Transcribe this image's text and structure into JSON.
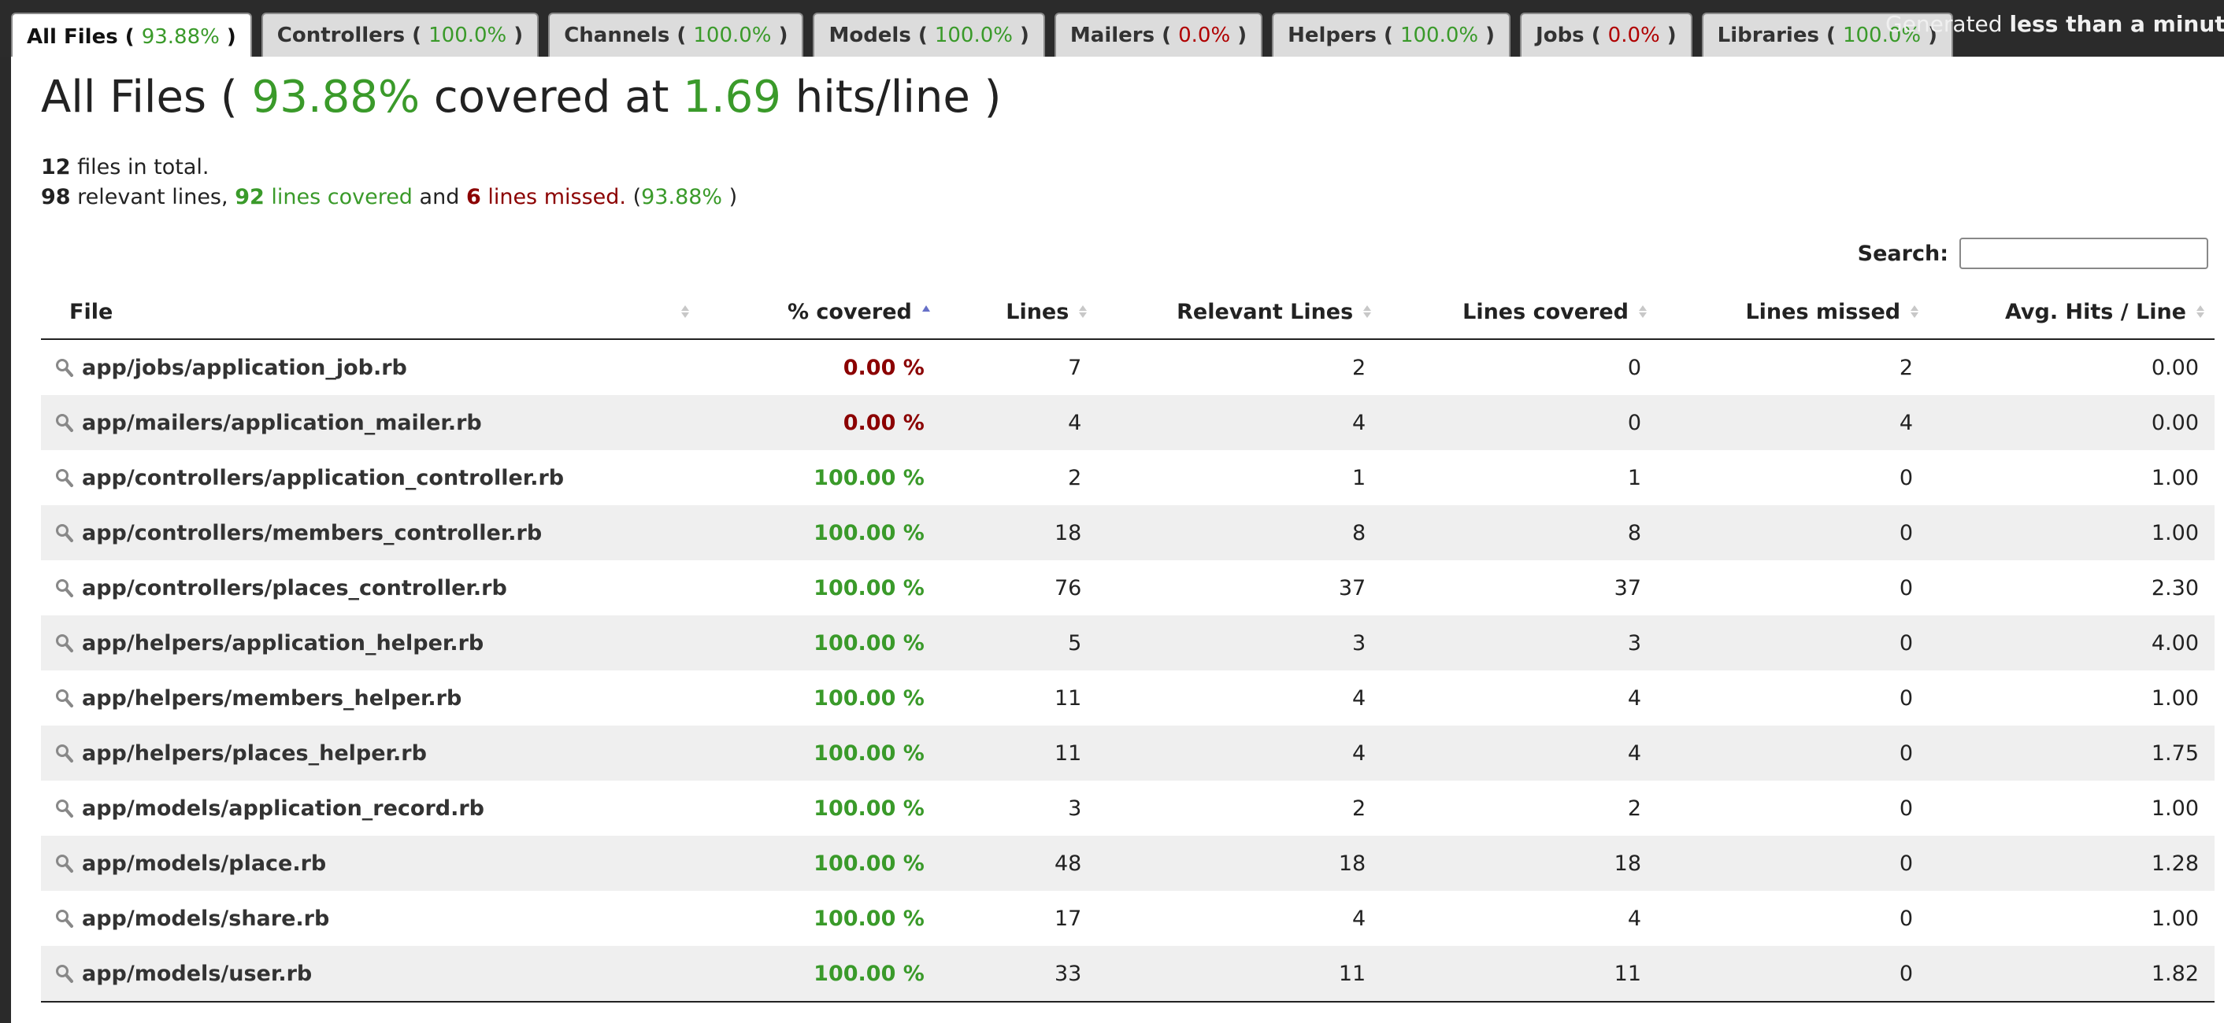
{
  "tabs": [
    {
      "label": "All Files",
      "pct": "93.88%",
      "status": "green",
      "active": true
    },
    {
      "label": "Controllers",
      "pct": "100.0%",
      "status": "green",
      "active": false
    },
    {
      "label": "Channels",
      "pct": "100.0%",
      "status": "green",
      "active": false
    },
    {
      "label": "Models",
      "pct": "100.0%",
      "status": "green",
      "active": false
    },
    {
      "label": "Mailers",
      "pct": "0.0%",
      "status": "red",
      "active": false
    },
    {
      "label": "Helpers",
      "pct": "100.0%",
      "status": "green",
      "active": false
    },
    {
      "label": "Jobs",
      "pct": "0.0%",
      "status": "red",
      "active": false
    },
    {
      "label": "Libraries",
      "pct": "100.0%",
      "status": "green",
      "active": false
    }
  ],
  "generated": {
    "prefix": "Generated",
    "value": "less than a minute ag"
  },
  "heading": {
    "prefix": "All Files (",
    "pct": "93.88%",
    "middle": "covered at",
    "hits": "1.69",
    "suffix": "hits/line )"
  },
  "summary": {
    "files_total": "12",
    "files_text": "files in total.",
    "relevant": "98",
    "relevant_text": "relevant lines,",
    "covered": "92",
    "covered_text": "lines covered",
    "and_text": "and",
    "missed": "6",
    "missed_text": "lines missed.",
    "pct_open": "(",
    "pct": "93.88%",
    "pct_close": ")"
  },
  "search": {
    "label": "Search:",
    "value": "",
    "placeholder": ""
  },
  "table": {
    "headers": [
      "File",
      "% covered",
      "Lines",
      "Relevant Lines",
      "Lines covered",
      "Lines missed",
      "Avg. Hits / Line"
    ],
    "rows": [
      {
        "file": "app/jobs/application_job.rb",
        "pct": "0.00 %",
        "status": "red",
        "lines": "7",
        "relevant": "2",
        "covered": "0",
        "missed": "2",
        "avg": "0.00"
      },
      {
        "file": "app/mailers/application_mailer.rb",
        "pct": "0.00 %",
        "status": "red",
        "lines": "4",
        "relevant": "4",
        "covered": "0",
        "missed": "4",
        "avg": "0.00"
      },
      {
        "file": "app/controllers/application_controller.rb",
        "pct": "100.00 %",
        "status": "green",
        "lines": "2",
        "relevant": "1",
        "covered": "1",
        "missed": "0",
        "avg": "1.00"
      },
      {
        "file": "app/controllers/members_controller.rb",
        "pct": "100.00 %",
        "status": "green",
        "lines": "18",
        "relevant": "8",
        "covered": "8",
        "missed": "0",
        "avg": "1.00"
      },
      {
        "file": "app/controllers/places_controller.rb",
        "pct": "100.00 %",
        "status": "green",
        "lines": "76",
        "relevant": "37",
        "covered": "37",
        "missed": "0",
        "avg": "2.30"
      },
      {
        "file": "app/helpers/application_helper.rb",
        "pct": "100.00 %",
        "status": "green",
        "lines": "5",
        "relevant": "3",
        "covered": "3",
        "missed": "0",
        "avg": "4.00"
      },
      {
        "file": "app/helpers/members_helper.rb",
        "pct": "100.00 %",
        "status": "green",
        "lines": "11",
        "relevant": "4",
        "covered": "4",
        "missed": "0",
        "avg": "1.00"
      },
      {
        "file": "app/helpers/places_helper.rb",
        "pct": "100.00 %",
        "status": "green",
        "lines": "11",
        "relevant": "4",
        "covered": "4",
        "missed": "0",
        "avg": "1.75"
      },
      {
        "file": "app/models/application_record.rb",
        "pct": "100.00 %",
        "status": "green",
        "lines": "3",
        "relevant": "2",
        "covered": "2",
        "missed": "0",
        "avg": "1.00"
      },
      {
        "file": "app/models/place.rb",
        "pct": "100.00 %",
        "status": "green",
        "lines": "48",
        "relevant": "18",
        "covered": "18",
        "missed": "0",
        "avg": "1.28"
      },
      {
        "file": "app/models/share.rb",
        "pct": "100.00 %",
        "status": "green",
        "lines": "17",
        "relevant": "4",
        "covered": "4",
        "missed": "0",
        "avg": "1.00"
      },
      {
        "file": "app/models/user.rb",
        "pct": "100.00 %",
        "status": "green",
        "lines": "33",
        "relevant": "11",
        "covered": "11",
        "missed": "0",
        "avg": "1.82"
      }
    ]
  },
  "colors": {
    "green": "#3a9a2a",
    "red": "#8b0000",
    "topbar": "#2b2b2b",
    "row_alt": "#efefef"
  }
}
